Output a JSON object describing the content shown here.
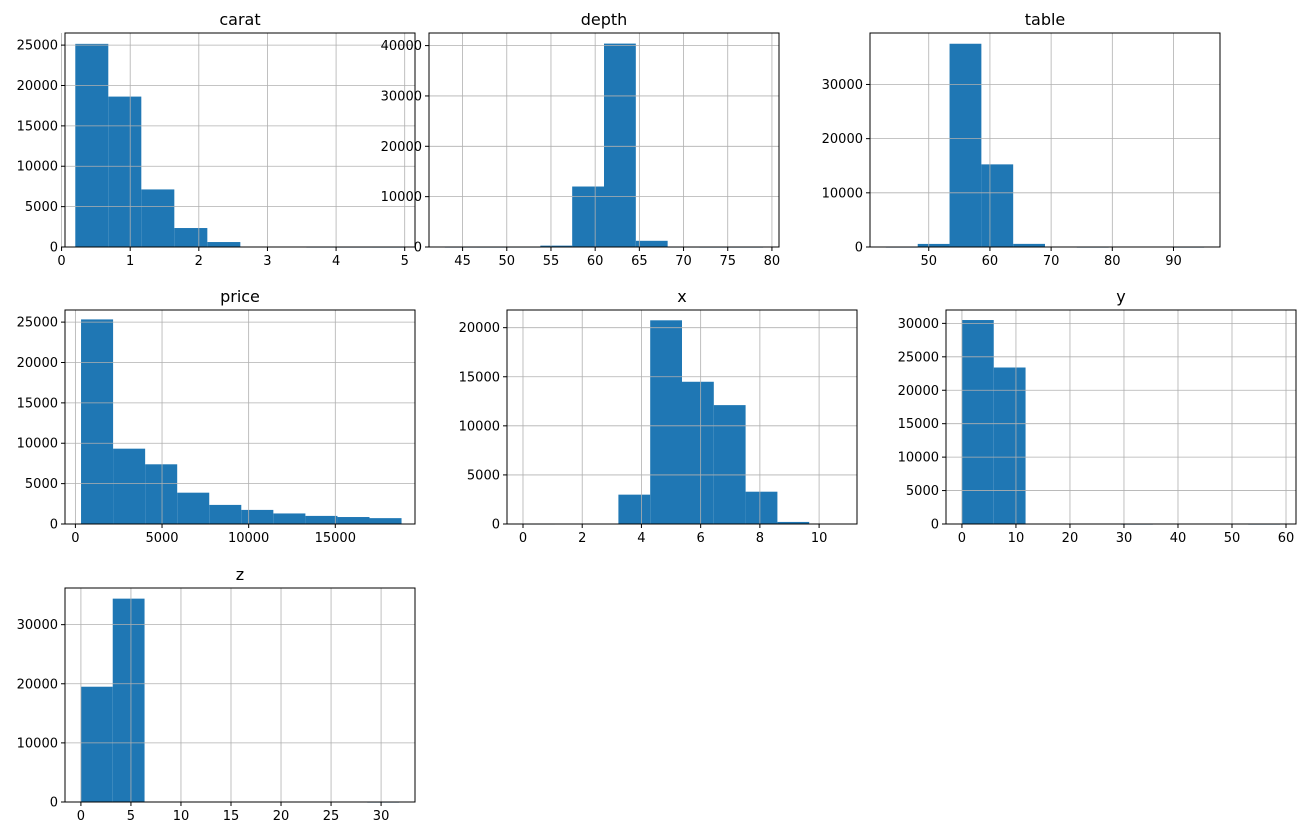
{
  "chart_data": [
    {
      "type": "bar",
      "title": "carat",
      "xlim": [
        0.05,
        5.15
      ],
      "ylim": [
        0,
        26500
      ],
      "xticks": [
        0,
        1,
        2,
        3,
        4,
        5
      ],
      "xtick_labels": [
        "0",
        "1",
        "2",
        "3",
        "4",
        "5"
      ],
      "yticks": [
        0,
        5000,
        10000,
        15000,
        20000,
        25000
      ],
      "ytick_labels": [
        "0",
        "5000",
        "10000",
        "15000",
        "20000",
        "25000"
      ],
      "bin_edges": [
        0.2,
        0.681,
        1.162,
        1.643,
        2.124,
        2.605,
        3.086,
        3.567,
        4.048,
        4.529,
        5.01
      ],
      "counts": [
        25155,
        18626,
        7129,
        2349,
        614,
        54,
        14,
        5,
        2,
        1
      ],
      "grid": true,
      "legend": "none",
      "color": "#1f77b4"
    },
    {
      "type": "bar",
      "title": "depth",
      "xlim": [
        41.2,
        80.8
      ],
      "ylim": [
        0,
        42500
      ],
      "xticks": [
        45,
        50,
        55,
        60,
        65,
        70,
        75,
        80
      ],
      "xtick_labels": [
        "45",
        "50",
        "55",
        "60",
        "65",
        "70",
        "75",
        "80"
      ],
      "yticks": [
        0,
        10000,
        20000,
        30000,
        40000
      ],
      "ytick_labels": [
        "0",
        "10000",
        "20000",
        "30000",
        "40000"
      ],
      "bin_edges": [
        43.0,
        46.6,
        50.2,
        53.8,
        57.4,
        61.0,
        64.6,
        68.2,
        71.8,
        75.4,
        79.0
      ],
      "counts": [
        3,
        2,
        10,
        273,
        12012,
        40394,
        1231,
        12,
        2,
        1
      ],
      "grid": true,
      "legend": "none",
      "color": "#1f77b4"
    },
    {
      "type": "bar",
      "title": "table",
      "xlim": [
        40.4,
        97.6
      ],
      "ylim": [
        0,
        39500
      ],
      "xticks": [
        50,
        60,
        70,
        80,
        90
      ],
      "xtick_labels": [
        "50",
        "60",
        "70",
        "80",
        "90"
      ],
      "yticks": [
        0,
        10000,
        20000,
        30000
      ],
      "ytick_labels": [
        "0",
        "10000",
        "20000",
        "30000"
      ],
      "bin_edges": [
        43.0,
        48.2,
        53.4,
        58.6,
        63.8,
        69.0,
        74.2,
        79.4,
        84.6,
        89.8,
        95.0
      ],
      "counts": [
        4,
        568,
        37515,
        15251,
        576,
        24,
        2,
        0,
        0,
        1
      ],
      "grid": true,
      "legend": "none",
      "color": "#1f77b4"
    },
    {
      "type": "bar",
      "title": "price",
      "xlim": [
        -600,
        19600
      ],
      "ylim": [
        0,
        26500
      ],
      "xticks": [
        0,
        5000,
        10000,
        15000
      ],
      "xtick_labels": [
        "0",
        "5000",
        "10000",
        "15000"
      ],
      "yticks": [
        0,
        5000,
        10000,
        15000,
        20000,
        25000
      ],
      "ytick_labels": [
        "0",
        "5000",
        "10000",
        "15000",
        "20000",
        "25000"
      ],
      "bin_edges": [
        326,
        2175.7,
        4025.4,
        5875.1,
        7724.8,
        9574.5,
        11424.2,
        13273.9,
        15123.6,
        16973.3,
        18823
      ],
      "counts": [
        25335,
        9328,
        7393,
        3878,
        2364,
        1745,
        1306,
        1002,
        863,
        726
      ],
      "grid": true,
      "legend": "none",
      "color": "#1f77b4"
    },
    {
      "type": "bar",
      "title": "x",
      "xlim": [
        -0.54,
        11.28
      ],
      "ylim": [
        0,
        21800
      ],
      "xticks": [
        0,
        2,
        4,
        6,
        8,
        10
      ],
      "xtick_labels": [
        "0",
        "2",
        "4",
        "6",
        "8",
        "10"
      ],
      "yticks": [
        0,
        5000,
        10000,
        15000,
        20000
      ],
      "ytick_labels": [
        "0",
        "5000",
        "10000",
        "15000",
        "20000"
      ],
      "bin_edges": [
        0.0,
        1.074,
        2.148,
        3.222,
        4.296,
        5.37,
        6.444,
        7.518,
        8.592,
        9.666,
        10.74
      ],
      "counts": [
        8,
        0,
        0,
        2990,
        20750,
        14490,
        12110,
        3290,
        210,
        10
      ],
      "grid": true,
      "legend": "none",
      "color": "#1f77b4"
    },
    {
      "type": "bar",
      "title": "y",
      "xlim": [
        -2.95,
        61.85
      ],
      "ylim": [
        0,
        32000
      ],
      "xticks": [
        0,
        10,
        20,
        30,
        40,
        50,
        60
      ],
      "xtick_labels": [
        "0",
        "10",
        "20",
        "30",
        "40",
        "50",
        "60"
      ],
      "yticks": [
        0,
        5000,
        10000,
        15000,
        20000,
        25000,
        30000
      ],
      "ytick_labels": [
        "0",
        "5000",
        "10000",
        "15000",
        "20000",
        "25000",
        "30000"
      ],
      "bin_edges": [
        0.0,
        5.89,
        11.78,
        17.67,
        23.56,
        29.45,
        35.34,
        41.23,
        47.12,
        53.01,
        58.9
      ],
      "counts": [
        30500,
        23400,
        0,
        0,
        0,
        1,
        0,
        0,
        0,
        1
      ],
      "grid": true,
      "legend": "none",
      "color": "#1f77b4"
    },
    {
      "type": "bar",
      "title": "z",
      "xlim": [
        -1.59,
        33.39
      ],
      "ylim": [
        0,
        36200
      ],
      "xticks": [
        0,
        5,
        10,
        15,
        20,
        25,
        30
      ],
      "xtick_labels": [
        "0",
        "5",
        "10",
        "15",
        "20",
        "25",
        "30"
      ],
      "yticks": [
        0,
        10000,
        20000,
        30000
      ],
      "ytick_labels": [
        "0",
        "10000",
        "20000",
        "30000"
      ],
      "bin_edges": [
        0.0,
        3.18,
        6.36,
        9.54,
        12.72,
        15.9,
        19.08,
        22.26,
        25.44,
        28.62,
        31.8
      ],
      "counts": [
        19500,
        34400,
        0,
        0,
        0,
        0,
        0,
        0,
        0,
        1
      ],
      "grid": true,
      "legend": "none",
      "color": "#1f77b4"
    }
  ]
}
